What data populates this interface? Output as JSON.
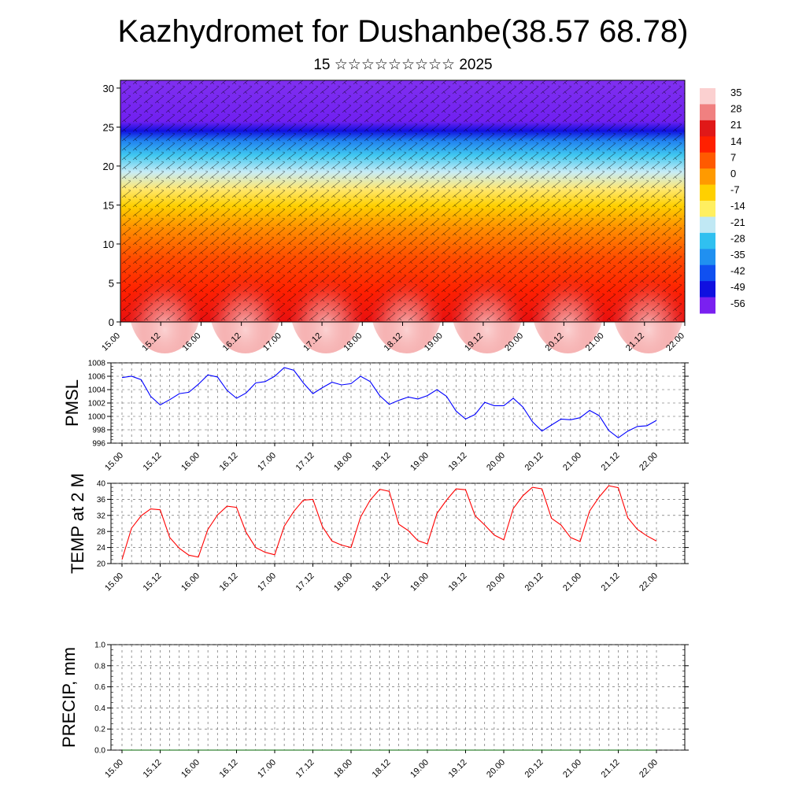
{
  "title": "Kazhydromet for Dushanbe(38.57 68.78)",
  "subtitle": "15 ☆☆☆☆☆☆☆☆☆ 2025",
  "colors": {
    "pmsl_line": "#0000ff",
    "temp_line": "#ff0000",
    "precip_line": "#006400"
  },
  "chart_data": [
    {
      "type": "heatmap",
      "name": "cross_section",
      "x_ticks": [
        "15.00",
        "15.12",
        "16.00",
        "16.12",
        "17.00",
        "17.12",
        "18.00",
        "18.12",
        "19.00",
        "19.12",
        "20.00",
        "20.12",
        "21.00",
        "21.12",
        "22.00"
      ],
      "y_ticks": [
        0,
        5,
        10,
        15,
        20,
        25,
        30
      ],
      "ylim": [
        0,
        31
      ],
      "colorbar_labels": [
        "35",
        "28",
        "21",
        "14",
        "7",
        "0",
        "-7",
        "-14",
        "-21",
        "-28",
        "-35",
        "-42",
        "-49",
        "-56"
      ],
      "colorbar_colors": [
        "#fbd0d0",
        "#f08080",
        "#e01818",
        "#ff2000",
        "#ff5a00",
        "#ff9a00",
        "#ffd000",
        "#ffef60",
        "#c0e8f4",
        "#30c0f0",
        "#2090f0",
        "#1050f0",
        "#1010e0",
        "#7a20f0"
      ],
      "temperature_by_height": [
        [
          0,
          33
        ],
        [
          4,
          28
        ],
        [
          8,
          18
        ],
        [
          12,
          5
        ],
        [
          15,
          -8
        ],
        [
          17,
          -14
        ],
        [
          19,
          -22
        ],
        [
          22,
          -40
        ],
        [
          24.5,
          -56
        ],
        [
          31,
          -58
        ]
      ],
      "overlay": "wind barbs"
    },
    {
      "type": "line",
      "name": "PMSL",
      "ylabel": "PMSL",
      "ylim": [
        996,
        1008
      ],
      "y_ticks": [
        "1008",
        "1006",
        "1004",
        "1002",
        "1000",
        "998",
        "996"
      ],
      "x_ticks": [
        "15.00",
        "15.12",
        "16.00",
        "16.12",
        "17.00",
        "17.12",
        "18.00",
        "18.12",
        "19.00",
        "19.12",
        "20.00",
        "20.12",
        "21.00",
        "21.12",
        "22.00"
      ],
      "step_hours": 3,
      "values": [
        1005.8,
        1006.0,
        1005.5,
        1003.0,
        1001.7,
        1002.5,
        1003.4,
        1003.6,
        1004.8,
        1006.2,
        1005.9,
        1003.9,
        1002.7,
        1003.5,
        1005.0,
        1005.2,
        1006.0,
        1007.3,
        1006.9,
        1005.0,
        1003.4,
        1004.3,
        1005.1,
        1004.7,
        1004.9,
        1006.0,
        1005.2,
        1003.1,
        1001.8,
        1002.4,
        1002.9,
        1002.6,
        1003.1,
        1004.0,
        1003.0,
        1000.8,
        999.6,
        1000.3,
        1002.1,
        1001.6,
        1001.6,
        1002.7,
        1001.4,
        999.2,
        997.8,
        998.7,
        999.6,
        999.5,
        999.8,
        1000.9,
        1000.1,
        997.9,
        996.8,
        997.8,
        998.5,
        998.6,
        999.4
      ]
    },
    {
      "type": "line",
      "name": "TEMP at 2 M",
      "ylabel": "TEMP at 2 M",
      "ylim": [
        20,
        40
      ],
      "y_ticks": [
        "40",
        "36",
        "32",
        "28",
        "24",
        "20"
      ],
      "x_ticks": [
        "15.00",
        "15.12",
        "16.00",
        "16.12",
        "17.00",
        "17.12",
        "18.00",
        "18.12",
        "19.00",
        "19.12",
        "20.00",
        "20.12",
        "21.00",
        "21.12",
        "22.00"
      ],
      "step_hours": 3,
      "values": [
        21.0,
        28.8,
        31.9,
        33.6,
        33.4,
        26.5,
        23.8,
        22.1,
        21.6,
        28.5,
        32.1,
        34.3,
        34.0,
        27.8,
        24.0,
        22.8,
        22.2,
        29.3,
        33.0,
        35.8,
        36.0,
        29.2,
        25.6,
        24.6,
        24.0,
        31.6,
        35.8,
        38.5,
        38.0,
        29.8,
        28.2,
        25.7,
        24.9,
        32.5,
        35.8,
        38.6,
        38.4,
        31.9,
        29.6,
        27.1,
        25.9,
        33.7,
        36.9,
        39.0,
        38.6,
        31.3,
        29.6,
        26.5,
        25.5,
        33.1,
        36.6,
        39.4,
        38.9,
        31.4,
        28.5,
        26.9,
        25.6
      ]
    },
    {
      "type": "line",
      "name": "PRECIP",
      "ylabel": "PRECIP, mm",
      "ylim": [
        0,
        1
      ],
      "y_ticks": [
        "1.0",
        "0.8",
        "0.6",
        "0.4",
        "0.2",
        "0.0"
      ],
      "x_ticks": [
        "15.00",
        "15.12",
        "16.00",
        "16.12",
        "17.00",
        "17.12",
        "18.00",
        "18.12",
        "19.00",
        "19.12",
        "20.00",
        "20.12",
        "21.00",
        "21.12",
        "22.00"
      ],
      "values": [
        0,
        0,
        0,
        0,
        0,
        0,
        0,
        0,
        0,
        0,
        0,
        0,
        0,
        0,
        0,
        0,
        0,
        0,
        0,
        0,
        0,
        0,
        0,
        0,
        0,
        0,
        0,
        0,
        0,
        0,
        0,
        0,
        0,
        0,
        0,
        0,
        0,
        0,
        0,
        0,
        0,
        0,
        0,
        0,
        0,
        0,
        0,
        0,
        0,
        0,
        0,
        0,
        0,
        0,
        0,
        0,
        0
      ]
    }
  ]
}
